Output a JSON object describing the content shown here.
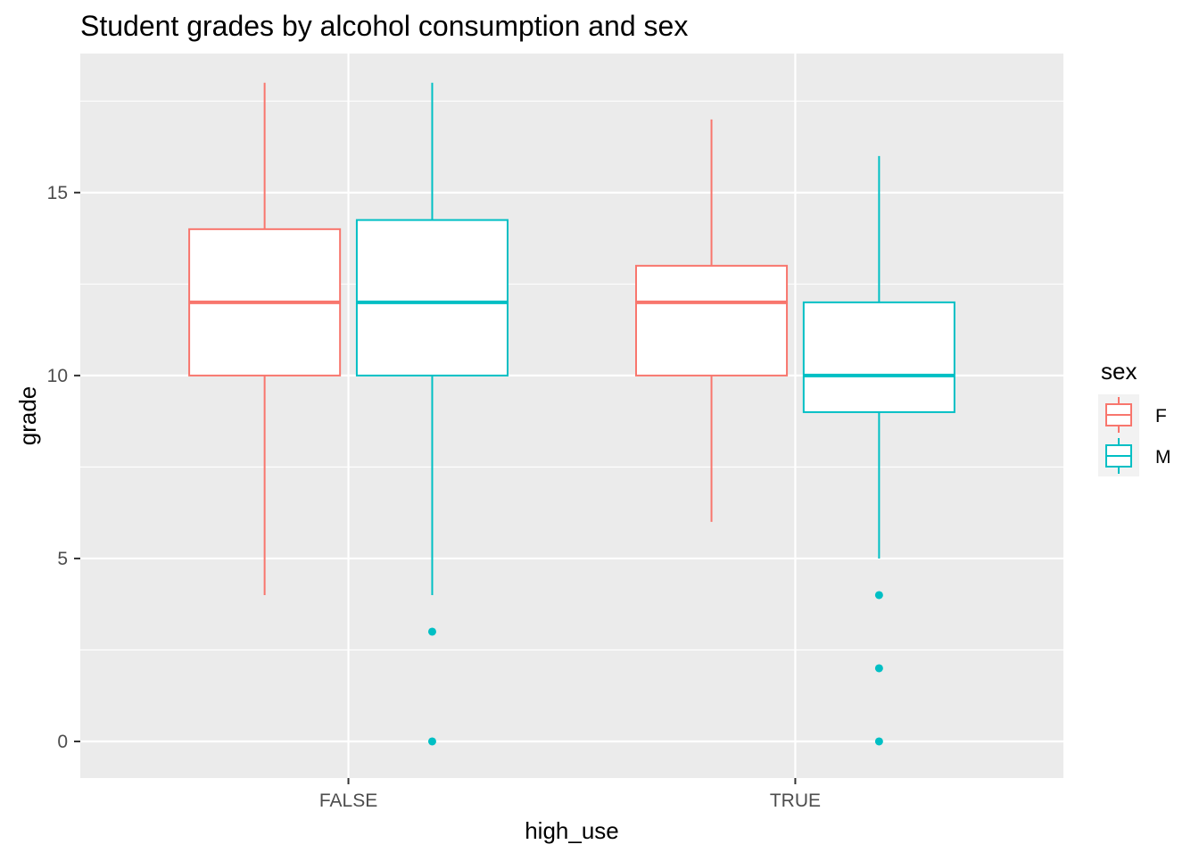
{
  "chart_data": {
    "type": "boxplot",
    "title": "Student grades by alcohol consumption and sex",
    "xlabel": "high_use",
    "ylabel": "grade",
    "categories": [
      "FALSE",
      "TRUE"
    ],
    "ylim": [
      -1,
      18.8
    ],
    "yticks": [
      0,
      5,
      10,
      15
    ],
    "grid": true,
    "legend": {
      "title": "sex",
      "position": "right"
    },
    "series": [
      {
        "name": "F",
        "color": "#F8766D",
        "boxes": [
          {
            "category": "FALSE",
            "min": 4,
            "q1": 10,
            "median": 12,
            "q3": 14,
            "max": 18,
            "outliers": []
          },
          {
            "category": "TRUE",
            "min": 6,
            "q1": 10,
            "median": 12,
            "q3": 13,
            "max": 17,
            "outliers": []
          }
        ]
      },
      {
        "name": "M",
        "color": "#00BFC4",
        "boxes": [
          {
            "category": "FALSE",
            "min": 4,
            "q1": 10,
            "median": 12,
            "q3": 14.25,
            "max": 18,
            "outliers": [
              3,
              0
            ]
          },
          {
            "category": "TRUE",
            "min": 5,
            "q1": 9,
            "median": 10,
            "q3": 12,
            "max": 16,
            "outliers": [
              4,
              2,
              0
            ]
          }
        ]
      }
    ]
  }
}
